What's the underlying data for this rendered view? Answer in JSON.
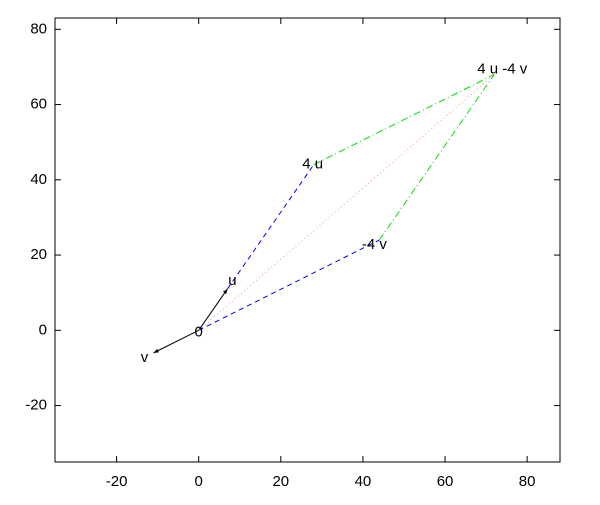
{
  "chart_data": {
    "type": "vector",
    "xlim": [
      -35,
      88
    ],
    "ylim": [
      -35,
      83
    ],
    "xticks": [
      -20,
      0,
      20,
      40,
      60,
      80
    ],
    "yticks": [
      -20,
      0,
      20,
      40,
      60,
      80
    ],
    "series": [
      {
        "color": "#000000",
        "dash": "solid",
        "arrow": true,
        "x": [
          0,
          7
        ],
        "y": [
          0,
          11
        ]
      },
      {
        "color": "#000000",
        "dash": "solid",
        "arrow": true,
        "x": [
          0,
          -11
        ],
        "y": [
          0,
          -6
        ]
      },
      {
        "color": "#0000ff",
        "dash": "dashed",
        "arrow": false,
        "x": [
          7,
          28
        ],
        "y": [
          11,
          44
        ]
      },
      {
        "color": "#0000ff",
        "dash": "dashed",
        "arrow": false,
        "x": [
          0,
          44
        ],
        "y": [
          0,
          24
        ]
      },
      {
        "color": "#00dd00",
        "dash": "dashdot",
        "arrow": false,
        "x": [
          28,
          72
        ],
        "y": [
          44,
          68
        ]
      },
      {
        "color": "#00dd00",
        "dash": "dashdot",
        "arrow": false,
        "x": [
          44,
          72
        ],
        "y": [
          24,
          68
        ]
      },
      {
        "color": "#ff9999",
        "dash": "dotted",
        "arrow": false,
        "x": [
          0,
          72
        ],
        "y": [
          0,
          68
        ]
      }
    ],
    "annotations": [
      {
        "text": "0",
        "x": 0,
        "y": 0
      },
      {
        "text": "u",
        "x": 7,
        "y": 11
      },
      {
        "text": "v",
        "x": -11,
        "y": -6
      },
      {
        "text": "4 u",
        "x": 28,
        "y": 44
      },
      {
        "text": "-4 v",
        "x": 44,
        "y": 24
      },
      {
        "text": "4 u -4 v",
        "x": 72,
        "y": 68
      }
    ]
  }
}
